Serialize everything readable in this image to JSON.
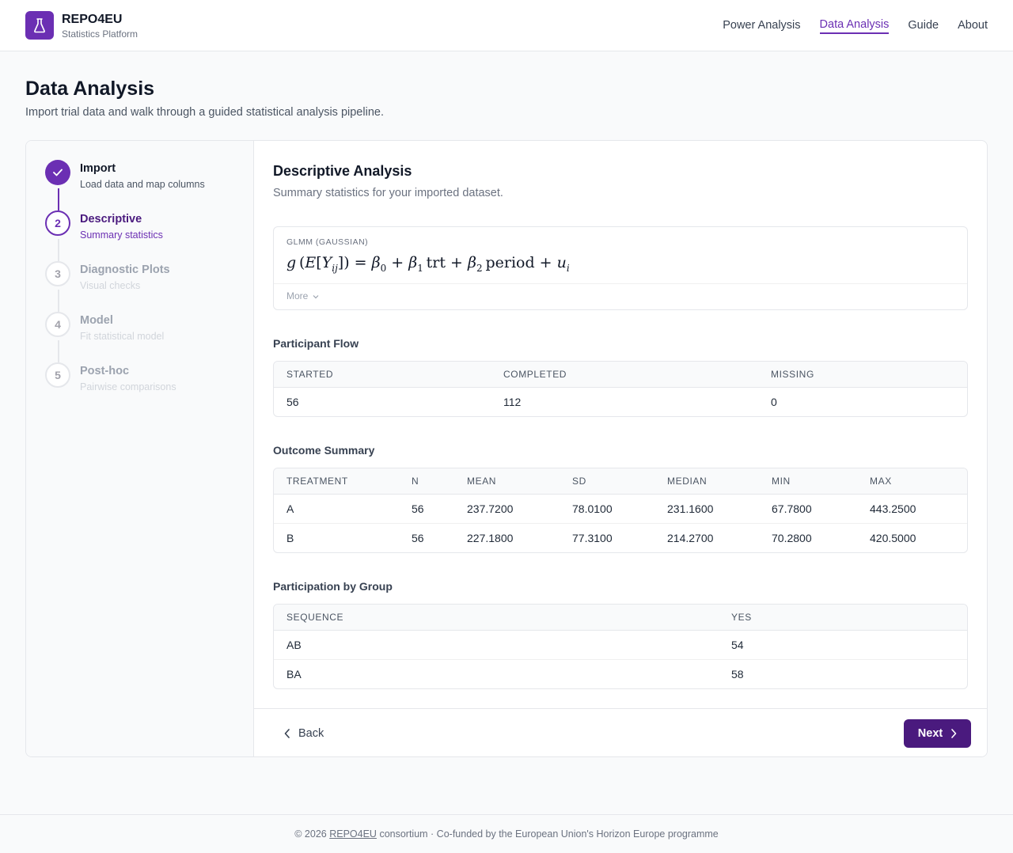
{
  "header": {
    "brand_name": "REPO4EU",
    "brand_sub": "Statistics Platform",
    "logo_icon": "flask-icon",
    "nav": [
      "Power Analysis",
      "Data Analysis",
      "Guide",
      "About"
    ],
    "active_nav": "Data Analysis"
  },
  "page": {
    "title": "Data Analysis",
    "subtitle": "Import trial data and walk through a guided statistical analysis pipeline."
  },
  "steps": [
    {
      "number": "1",
      "title": "Import",
      "desc": "Load data and map columns",
      "state": "done"
    },
    {
      "number": "2",
      "title": "Descriptive",
      "desc": "Summary statistics",
      "state": "current"
    },
    {
      "number": "3",
      "title": "Diagnostic Plots",
      "desc": "Visual checks",
      "state": "todo"
    },
    {
      "number": "4",
      "title": "Model",
      "desc": "Fit statistical model",
      "state": "todo"
    },
    {
      "number": "5",
      "title": "Post-hoc",
      "desc": "Pairwise comparisons",
      "state": "todo"
    }
  ],
  "main": {
    "title": "Descriptive Analysis",
    "subtitle": "Summary statistics for your imported dataset.",
    "formula_label": "GLMM (GAUSSIAN)",
    "more_label": "More",
    "participant_flow": {
      "heading": "Participant Flow",
      "columns": [
        "STARTED",
        "COMPLETED",
        "MISSING"
      ],
      "rows": [
        [
          "56",
          "112",
          "0"
        ]
      ]
    },
    "outcome_summary": {
      "heading": "Outcome Summary",
      "columns": [
        "TREATMENT",
        "N",
        "MEAN",
        "SD",
        "MEDIAN",
        "MIN",
        "MAX"
      ],
      "rows": [
        [
          "A",
          "56",
          "237.7200",
          "78.0100",
          "231.1600",
          "67.7800",
          "443.2500"
        ],
        [
          "B",
          "56",
          "227.1800",
          "77.3100",
          "214.2700",
          "70.2800",
          "420.5000"
        ]
      ]
    },
    "participation_by_group": {
      "heading": "Participation by Group",
      "columns": [
        "SEQUENCE",
        "YES"
      ],
      "rows": [
        [
          "AB",
          "54"
        ],
        [
          "BA",
          "58"
        ]
      ]
    },
    "back_label": "Back",
    "next_label": "Next"
  },
  "footer": {
    "prefix": "© 2026 ",
    "link": "REPO4EU",
    "suffix": " consortium · Co-funded by the European Union's Horizon Europe programme"
  },
  "colors": {
    "accent": "#6b2fb3",
    "next_button": "#4a1a7e"
  }
}
